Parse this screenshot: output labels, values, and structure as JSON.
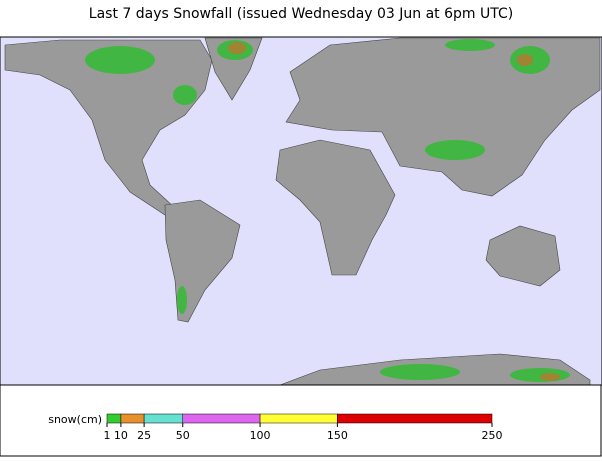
{
  "map": {
    "title": "Last 7 days Snowfall (issued Wednesday 03 Jun at 6pm UTC)"
  },
  "legend": {
    "label": "snow(cm)",
    "range": [
      1,
      250
    ],
    "ticks": [
      1,
      10,
      25,
      50,
      100,
      150,
      250
    ],
    "colors": [
      "#33cc33",
      "#e8902a",
      "#66e0d0",
      "#dd66ee",
      "#ffff33",
      "#dd0000"
    ]
  }
}
